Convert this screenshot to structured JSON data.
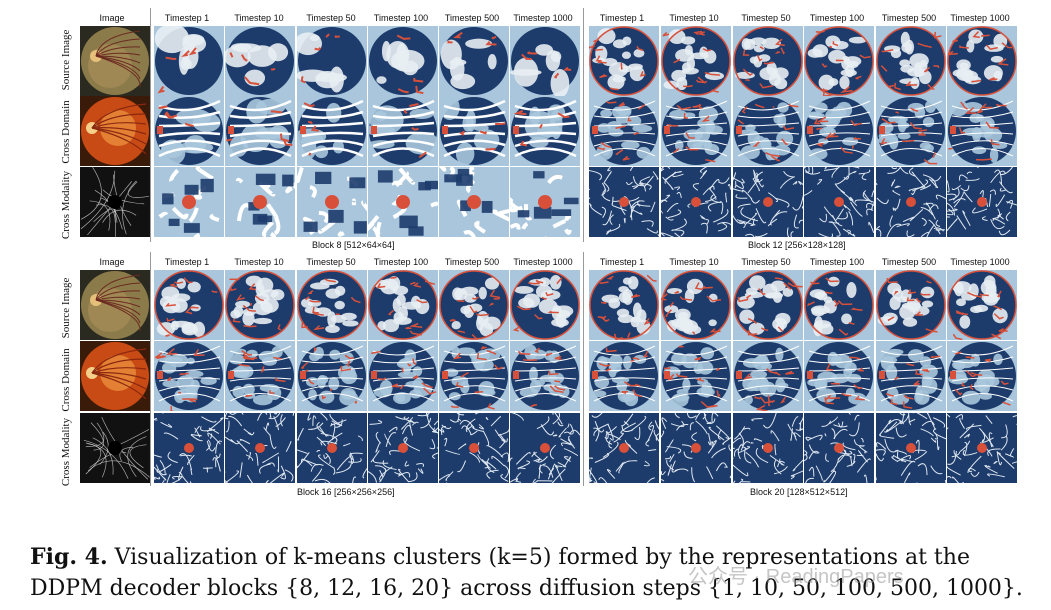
{
  "image_header": "Image",
  "row_labels": [
    "Source Image",
    "Cross Domain",
    "Cross Modality"
  ],
  "timesteps": [
    "Timestep 1",
    "Timestep 10",
    "Timestep 50",
    "Timestep 100",
    "Timestep 500",
    "Timestep 1000"
  ],
  "blocks": [
    {
      "label": "Block 8 [512×64×64]"
    },
    {
      "label": "Block 12 [256×128×128]"
    },
    {
      "label": "Block 16 [256×256×256]"
    },
    {
      "label": "Block 20 [128×512×512]"
    }
  ],
  "caption": {
    "prefix": "Fig. 4.",
    "text": " Visualization of k-means clusters (k=5) formed by the representations at the DDPM decoder blocks {8, 12, 16, 20} across diffusion steps {1, 10, 50, 100, 500, 1000}."
  },
  "watermark": "公众号 · ReadingPapers",
  "colors": {
    "navy": "#1d3b6b",
    "light_blue": "#a9c6dc",
    "pale": "#e8eef3",
    "red": "#d9503a",
    "white": "#ffffff"
  }
}
